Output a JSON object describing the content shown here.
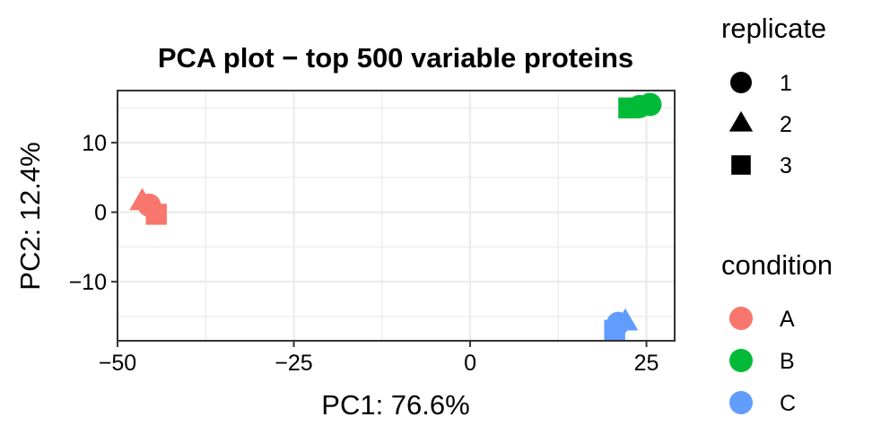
{
  "chart_data": {
    "type": "scatter",
    "title": "PCA plot − top 500 variable proteins",
    "xlabel": "PC1: 76.6%",
    "ylabel": "PC2: 12.4%",
    "xlim": [
      -50,
      29
    ],
    "ylim": [
      -18.5,
      17.5
    ],
    "x_ticks": [
      -50,
      -25,
      0,
      25
    ],
    "x_tick_labels": [
      "−50",
      "−25",
      "0",
      "25"
    ],
    "y_ticks": [
      -10,
      0,
      10
    ],
    "y_tick_labels": [
      "−10",
      "0",
      "10"
    ],
    "grid": true,
    "shape_legend": {
      "title": "replicate",
      "items": [
        {
          "label": "1",
          "shape": "circle"
        },
        {
          "label": "2",
          "shape": "triangle"
        },
        {
          "label": "3",
          "shape": "square"
        }
      ]
    },
    "color_legend": {
      "title": "condition",
      "items": [
        {
          "label": "A",
          "color": "#F8766D"
        },
        {
          "label": "B",
          "color": "#00BA38"
        },
        {
          "label": "C",
          "color": "#619CFF"
        }
      ]
    },
    "legend_position": "right",
    "points": [
      {
        "x": -46.5,
        "y": 1.5,
        "condition": "A",
        "replicate": "2"
      },
      {
        "x": -45.5,
        "y": 1.0,
        "condition": "A",
        "replicate": "1"
      },
      {
        "x": -44.5,
        "y": -0.3,
        "condition": "A",
        "replicate": "3"
      },
      {
        "x": 24.0,
        "y": 15.2,
        "condition": "B",
        "replicate": "1"
      },
      {
        "x": 22.5,
        "y": 15.0,
        "condition": "B",
        "replicate": "3"
      },
      {
        "x": 25.5,
        "y": 15.5,
        "condition": "B",
        "replicate": "1"
      },
      {
        "x": 22.0,
        "y": -15.8,
        "condition": "C",
        "replicate": "2"
      },
      {
        "x": 21.0,
        "y": -16.0,
        "condition": "C",
        "replicate": "1"
      },
      {
        "x": 20.5,
        "y": -17.0,
        "condition": "C",
        "replicate": "3"
      }
    ]
  }
}
